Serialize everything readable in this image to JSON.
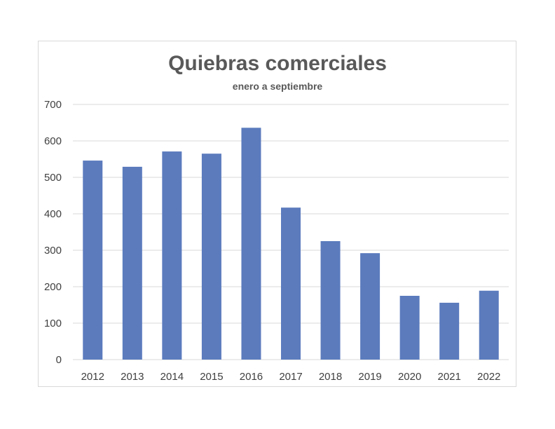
{
  "chart_data": {
    "type": "bar",
    "title": "Quiebras comerciales",
    "subtitle": "enero a septiembre",
    "categories": [
      "2012",
      "2013",
      "2014",
      "2015",
      "2016",
      "2017",
      "2018",
      "2019",
      "2020",
      "2021",
      "2022"
    ],
    "values": [
      546,
      529,
      571,
      565,
      636,
      417,
      325,
      292,
      175,
      156,
      189
    ],
    "ylim": [
      0,
      700
    ],
    "yticks": [
      "0",
      "100",
      "200",
      "300",
      "400",
      "500",
      "600",
      "700"
    ],
    "grid": true,
    "colors": {
      "bar": "#5b7bbd",
      "grid": "#d9d9d9"
    }
  }
}
